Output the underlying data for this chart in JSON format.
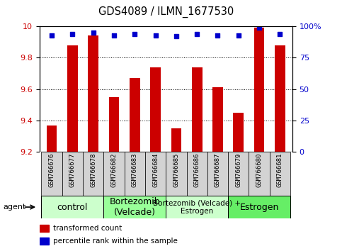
{
  "title": "GDS4089 / ILMN_1677530",
  "samples": [
    "GSM766676",
    "GSM766677",
    "GSM766678",
    "GSM766682",
    "GSM766683",
    "GSM766684",
    "GSM766685",
    "GSM766686",
    "GSM766687",
    "GSM766679",
    "GSM766680",
    "GSM766681"
  ],
  "bar_values": [
    9.37,
    9.88,
    9.94,
    9.55,
    9.67,
    9.74,
    9.35,
    9.74,
    9.61,
    9.45,
    9.99,
    9.88
  ],
  "dot_values": [
    93,
    94,
    95,
    93,
    94,
    93,
    92,
    94,
    93,
    93,
    99,
    94
  ],
  "bar_color": "#cc0000",
  "dot_color": "#0000cc",
  "ylim_left": [
    9.2,
    10.0
  ],
  "ylim_right": [
    0,
    100
  ],
  "yticks_left": [
    9.2,
    9.4,
    9.6,
    9.8,
    10.0
  ],
  "ytick_labels_left": [
    "9.2",
    "9.4",
    "9.6",
    "9.8",
    "10"
  ],
  "yticks_right": [
    0,
    25,
    50,
    75,
    100
  ],
  "ytick_labels_right": [
    "0",
    "25",
    "50",
    "75",
    "100%"
  ],
  "groups": [
    {
      "label": "control",
      "start": 0,
      "end": 3,
      "color": "#ccffcc"
    },
    {
      "label": "Bortezomib\n(Velcade)",
      "start": 3,
      "end": 6,
      "color": "#99ff99"
    },
    {
      "label": "Bortezomib (Velcade) +\nEstrogen",
      "start": 6,
      "end": 9,
      "color": "#ccffcc"
    },
    {
      "label": "Estrogen",
      "start": 9,
      "end": 12,
      "color": "#66ee66"
    }
  ],
  "agent_label": "agent",
  "legend_bar": "transformed count",
  "legend_dot": "percentile rank within the sample",
  "bar_width": 0.5,
  "baseline": 9.2,
  "bg_color": "#ffffff",
  "tick_label_color_left": "#cc0000",
  "tick_label_color_right": "#0000cc",
  "sample_box_color": "#d3d3d3",
  "group_font_sizes": [
    9,
    9,
    7.5,
    9
  ]
}
